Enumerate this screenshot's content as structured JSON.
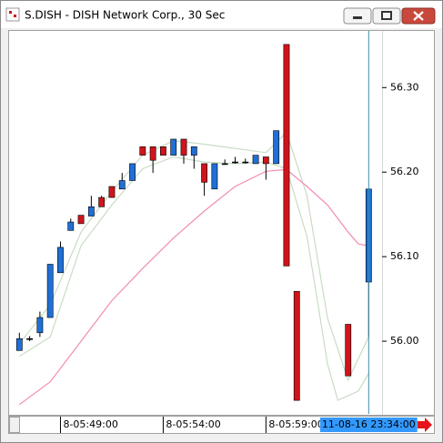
{
  "window": {
    "title": "S.DISH - DISH Network Corp., 30 Sec"
  },
  "chart_data": {
    "type": "candlestick",
    "candles": {
      "x": [
        0,
        1,
        2,
        3,
        4,
        5,
        6,
        7,
        8,
        9,
        10,
        11,
        12,
        13,
        14,
        15,
        16,
        17,
        18,
        19,
        20,
        21,
        22,
        23,
        24,
        25,
        26,
        27,
        32,
        34
      ],
      "open": [
        55.989,
        56.003,
        56.01,
        56.028,
        56.081,
        56.131,
        56.149,
        56.148,
        56.17,
        56.183,
        56.18,
        56.19,
        56.23,
        56.23,
        56.23,
        56.22,
        56.239,
        56.22,
        56.21,
        56.18,
        56.21,
        56.212,
        56.212,
        56.21,
        56.218,
        56.21,
        56.351,
        56.059,
        56.02,
        56.07
      ],
      "high": [
        56.01,
        56.006,
        56.035,
        56.091,
        56.118,
        56.145,
        56.149,
        56.172,
        56.172,
        56.183,
        56.199,
        56.21,
        56.23,
        56.23,
        56.23,
        56.239,
        56.239,
        56.23,
        56.21,
        56.21,
        56.215,
        56.218,
        56.216,
        56.22,
        56.218,
        56.249,
        56.351,
        56.059,
        56.02,
        56.18
      ],
      "low": [
        55.989,
        56.0,
        56.005,
        56.028,
        56.081,
        56.131,
        56.139,
        56.148,
        56.159,
        56.17,
        56.18,
        56.19,
        56.22,
        56.199,
        56.22,
        56.22,
        56.21,
        56.204,
        56.172,
        56.18,
        56.21,
        56.21,
        56.21,
        56.21,
        56.191,
        56.21,
        56.089,
        55.93,
        55.959,
        56.005
      ],
      "close": [
        56.003,
        56.003,
        56.028,
        56.091,
        56.111,
        56.141,
        56.139,
        56.159,
        56.159,
        56.17,
        56.19,
        56.21,
        56.22,
        56.214,
        56.22,
        56.239,
        56.22,
        56.23,
        56.188,
        56.21,
        56.21,
        56.212,
        56.212,
        56.22,
        56.21,
        56.249,
        56.089,
        55.93,
        55.959,
        56.18
      ]
    },
    "up_color": "#1f6fd6",
    "down_color": "#d0141b",
    "lines": [
      {
        "color": "#c8dcc4",
        "x": [
          0,
          3,
          6,
          9,
          12,
          15,
          18,
          21,
          24,
          26,
          28,
          30,
          32,
          34
        ],
        "values": [
          55.997,
          56.043,
          56.129,
          56.177,
          56.22,
          56.237,
          56.233,
          56.228,
          56.223,
          56.247,
          56.172,
          56.027,
          55.954,
          56.005
        ]
      },
      {
        "color": "#c8dcc4",
        "x": [
          0,
          3,
          6,
          9,
          12,
          15,
          18,
          21,
          24,
          26,
          28,
          30,
          31,
          33,
          34
        ],
        "values": [
          55.982,
          56.005,
          56.113,
          56.161,
          56.204,
          56.218,
          56.212,
          56.21,
          56.212,
          56.204,
          56.124,
          55.973,
          55.93,
          55.941,
          55.962
        ]
      },
      {
        "color": "#f08cb4",
        "x": [
          0,
          3,
          6,
          9,
          12,
          15,
          18,
          21,
          24,
          26,
          28,
          30,
          32,
          33,
          34
        ],
        "values": [
          55.925,
          55.952,
          56.0,
          56.048,
          56.086,
          56.122,
          56.154,
          56.183,
          56.201,
          56.203,
          56.183,
          56.161,
          56.129,
          56.115,
          56.113
        ]
      }
    ],
    "xlim": [
      -1,
      35.3
    ],
    "xticks": [
      {
        "value": 4,
        "label": "8-05:49:00"
      },
      {
        "value": 14,
        "label": "8-05:54:00"
      },
      {
        "value": 24,
        "label": "8-05:59:00"
      }
    ],
    "ylim": [
      55.914,
      56.367
    ],
    "yticks": [
      {
        "value": 56,
        "label": "56.00"
      },
      {
        "value": 56.1,
        "label": "56.10"
      },
      {
        "value": 56.2,
        "label": "56.20"
      },
      {
        "value": 56.3,
        "label": "56.30"
      }
    ],
    "cursor": {
      "x": 34,
      "label": "11-08-16 23:34:00",
      "color": "#3a8fb0"
    }
  }
}
